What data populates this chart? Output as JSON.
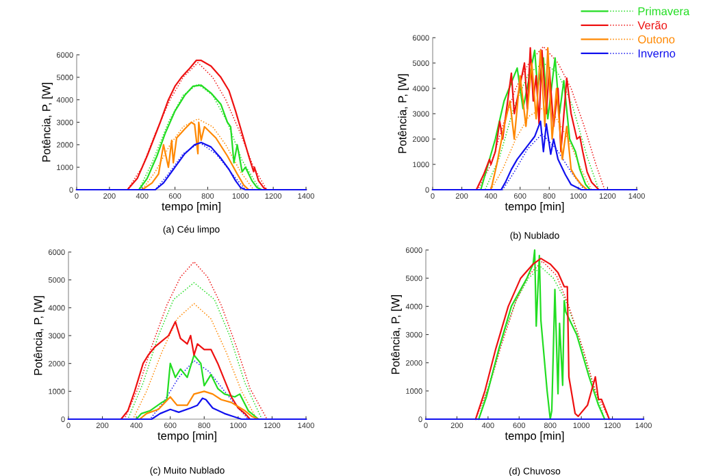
{
  "chart_data": [
    {
      "type": "line",
      "title": "(a) Céu limpo",
      "xlabel": "tempo [min]",
      "ylabel": "Potência, P, [W]",
      "xlim": [
        0,
        1400
      ],
      "xticks": [
        0,
        200,
        400,
        600,
        800,
        1000,
        1200,
        1400
      ],
      "ylim": [
        0,
        6000
      ],
      "yticks": [
        0,
        1000,
        2000,
        3000,
        4000,
        5000,
        6000
      ],
      "grid": false,
      "legend": false,
      "series": [
        {
          "color": "#22dd22",
          "line_style": "dotted",
          "x": [
            0,
            380,
            460,
            560,
            650,
            740,
            830,
            920,
            1010,
            1120,
            1400
          ],
          "values": [
            0,
            0,
            1200,
            3000,
            4200,
            4700,
            4200,
            3000,
            1300,
            0,
            0
          ]
        },
        {
          "color": "#ee1111",
          "line_style": "dotted",
          "x": [
            0,
            310,
            400,
            480,
            570,
            650,
            740,
            830,
            910,
            1000,
            1080,
            1160,
            1400
          ],
          "values": [
            0,
            0,
            1000,
            2500,
            4000,
            5000,
            5650,
            5000,
            4000,
            2500,
            1000,
            0,
            0
          ]
        },
        {
          "color": "#ff8800",
          "line_style": "dotted",
          "x": [
            0,
            400,
            480,
            570,
            650,
            740,
            830,
            910,
            1000,
            1080,
            1400
          ],
          "values": [
            0,
            0,
            800,
            2000,
            2800,
            3150,
            2800,
            2000,
            800,
            0,
            0
          ]
        },
        {
          "color": "#1111ee",
          "line_style": "dotted",
          "x": [
            0,
            480,
            560,
            650,
            750,
            850,
            950,
            1030,
            1400
          ],
          "values": [
            0,
            0,
            700,
            1600,
            2100,
            1600,
            700,
            0,
            0
          ]
        },
        {
          "color": "#22dd22",
          "line_style": "solid",
          "x": [
            0,
            380,
            430,
            490,
            540,
            600,
            660,
            710,
            760,
            820,
            880,
            920,
            940,
            960,
            980,
            1010,
            1030,
            1070,
            1100,
            1130,
            1400
          ],
          "values": [
            0,
            0,
            500,
            1500,
            2500,
            3500,
            4200,
            4600,
            4650,
            4300,
            3800,
            3000,
            2800,
            1200,
            2000,
            800,
            1000,
            400,
            100,
            0,
            0
          ]
        },
        {
          "color": "#ee1111",
          "line_style": "solid",
          "x": [
            0,
            310,
            370,
            430,
            510,
            560,
            600,
            640,
            690,
            730,
            760,
            820,
            880,
            930,
            970,
            1010,
            1050,
            1080,
            1085,
            1110,
            1140,
            1160,
            1400
          ],
          "values": [
            0,
            0,
            500,
            1500,
            3000,
            4000,
            4600,
            5000,
            5400,
            5750,
            5750,
            5500,
            5000,
            4400,
            3500,
            2500,
            1500,
            800,
            1000,
            400,
            100,
            0,
            0
          ]
        },
        {
          "color": "#ff8800",
          "line_style": "solid",
          "x": [
            0,
            400,
            460,
            500,
            530,
            560,
            580,
            590,
            610,
            660,
            700,
            720,
            740,
            745,
            760,
            780,
            850,
            920,
            980,
            1020,
            1050,
            1400
          ],
          "values": [
            0,
            0,
            300,
            700,
            2000,
            1000,
            2200,
            1200,
            2300,
            2700,
            3000,
            2900,
            1600,
            3000,
            2200,
            2800,
            2300,
            1500,
            700,
            200,
            0,
            0
          ]
        },
        {
          "color": "#1111ee",
          "line_style": "solid",
          "x": [
            0,
            480,
            530,
            600,
            660,
            720,
            760,
            820,
            880,
            930,
            970,
            1000,
            1030,
            1400
          ],
          "values": [
            0,
            0,
            300,
            1000,
            1600,
            2000,
            2100,
            1900,
            1400,
            900,
            400,
            100,
            0,
            0
          ]
        }
      ]
    },
    {
      "type": "line",
      "title": "(b) Nublado",
      "xlabel": "tempo [min]",
      "ylabel": "Potência, P, [W]",
      "xlim": [
        0,
        1400
      ],
      "xticks": [
        0,
        200,
        400,
        600,
        800,
        1000,
        1200,
        1400
      ],
      "ylim": [
        0,
        6000
      ],
      "yticks": [
        0,
        1000,
        2000,
        3000,
        4000,
        5000,
        6000
      ],
      "grid": false,
      "legend": "right",
      "series": [
        {
          "name": "Primavera",
          "color": "#22dd22",
          "line_style": "solid",
          "x": [
            0,
            330,
            380,
            430,
            490,
            580,
            620,
            700,
            720,
            760,
            790,
            840,
            870,
            900,
            940,
            980,
            1010,
            1050,
            1080,
            1400
          ],
          "values": [
            0,
            0,
            1000,
            2000,
            3500,
            4800,
            3200,
            5500,
            4000,
            5200,
            2800,
            5200,
            3000,
            4300,
            2000,
            1500,
            800,
            200,
            0,
            0
          ]
        },
        {
          "name": "Verão",
          "color": "#ee1111",
          "line_style": "solid",
          "x": [
            0,
            300,
            350,
            390,
            400,
            430,
            460,
            480,
            540,
            560,
            630,
            650,
            670,
            690,
            710,
            730,
            750,
            780,
            800,
            830,
            860,
            880,
            920,
            950,
            990,
            1010,
            1030,
            1060,
            1090,
            1140,
            1400
          ],
          "values": [
            0,
            0,
            600,
            1200,
            1000,
            1500,
            2700,
            2000,
            4600,
            3000,
            5000,
            3200,
            5600,
            3500,
            4500,
            2600,
            5500,
            3000,
            4800,
            2500,
            4000,
            1500,
            4400,
            3000,
            2000,
            2100,
            1500,
            700,
            300,
            0,
            0
          ]
        },
        {
          "name": "Outono",
          "color": "#ff8800",
          "line_style": "solid",
          "x": [
            0,
            400,
            440,
            490,
            530,
            560,
            600,
            640,
            680,
            710,
            740,
            770,
            790,
            820,
            850,
            890,
            920,
            950,
            980,
            1020,
            1060,
            1400
          ],
          "values": [
            0,
            0,
            1000,
            2500,
            3500,
            2000,
            4500,
            2500,
            5000,
            2800,
            5500,
            2500,
            5600,
            2000,
            4000,
            1200,
            2500,
            800,
            500,
            200,
            0,
            0
          ]
        },
        {
          "name": "Inverno",
          "color": "#1111ee",
          "line_style": "solid",
          "x": [
            0,
            470,
            500,
            540,
            580,
            620,
            660,
            700,
            740,
            760,
            780,
            810,
            830,
            860,
            910,
            950,
            1020,
            1400
          ],
          "values": [
            0,
            0,
            300,
            800,
            1200,
            1500,
            1800,
            2100,
            2700,
            1500,
            2600,
            1400,
            2000,
            1200,
            600,
            200,
            0,
            0
          ]
        },
        {
          "color": "#22dd22",
          "line_style": "dotted",
          "x": [
            0,
            360,
            460,
            560,
            660,
            760,
            860,
            960,
            1060,
            1140,
            1400
          ],
          "values": [
            0,
            0,
            1300,
            3300,
            4600,
            5000,
            4600,
            3300,
            1300,
            0,
            0
          ]
        },
        {
          "color": "#ee1111",
          "line_style": "dotted",
          "x": [
            0,
            310,
            400,
            480,
            570,
            660,
            760,
            860,
            950,
            1040,
            1120,
            1180,
            1400
          ],
          "values": [
            0,
            0,
            1000,
            2500,
            4000,
            5000,
            5650,
            5000,
            4000,
            2500,
            1000,
            0,
            0
          ]
        },
        {
          "color": "#ff8800",
          "line_style": "dotted",
          "x": [
            0,
            400,
            480,
            570,
            660,
            750,
            840,
            930,
            1020,
            1090,
            1400
          ],
          "values": [
            0,
            0,
            800,
            2000,
            2900,
            3200,
            2900,
            2000,
            800,
            0,
            0
          ]
        },
        {
          "color": "#1111ee",
          "line_style": "dotted",
          "x": [
            0,
            480,
            560,
            650,
            750,
            850,
            950,
            1040,
            1400
          ],
          "values": [
            0,
            0,
            700,
            1600,
            2200,
            1600,
            700,
            0,
            0
          ]
        }
      ]
    },
    {
      "type": "line",
      "title": "(c) Muito Nublado",
      "xlabel": "tempo [min]",
      "ylabel": "Potência, P, [W]",
      "xlim": [
        0,
        1400
      ],
      "xticks": [
        0,
        200,
        400,
        600,
        800,
        1000,
        1200,
        1400
      ],
      "ylim": [
        0,
        6000
      ],
      "yticks": [
        0,
        1000,
        2000,
        3000,
        4000,
        5000,
        6000
      ],
      "grid": false,
      "legend": false,
      "series": [
        {
          "color": "#22dd22",
          "line_style": "dotted",
          "x": [
            0,
            350,
            440,
            530,
            620,
            740,
            860,
            950,
            1040,
            1140,
            1400
          ],
          "values": [
            0,
            0,
            1300,
            3000,
            4300,
            4900,
            4300,
            3000,
            1300,
            0,
            0
          ]
        },
        {
          "color": "#ee1111",
          "line_style": "dotted",
          "x": [
            0,
            330,
            410,
            490,
            580,
            660,
            740,
            820,
            900,
            990,
            1070,
            1170,
            1400
          ],
          "values": [
            0,
            0,
            1100,
            2600,
            4100,
            5100,
            5650,
            5100,
            4100,
            2600,
            1100,
            0,
            0
          ]
        },
        {
          "color": "#ff8800",
          "line_style": "dotted",
          "x": [
            0,
            380,
            460,
            550,
            640,
            740,
            840,
            930,
            1020,
            1110,
            1400
          ],
          "values": [
            0,
            0,
            1000,
            2400,
            3600,
            4150,
            3600,
            2400,
            1000,
            0,
            0
          ]
        },
        {
          "color": "#1111ee",
          "line_style": "dotted",
          "x": [
            0,
            480,
            560,
            650,
            740,
            830,
            920,
            1000,
            1060,
            1400
          ],
          "values": [
            0,
            0,
            600,
            1500,
            2100,
            1700,
            1000,
            400,
            0,
            0
          ]
        },
        {
          "color": "#22dd22",
          "line_style": "solid",
          "x": [
            0,
            400,
            430,
            480,
            550,
            580,
            600,
            630,
            660,
            700,
            740,
            780,
            800,
            840,
            880,
            920,
            980,
            1010,
            1060,
            1120,
            1400
          ],
          "values": [
            0,
            0,
            200,
            300,
            600,
            700,
            2000,
            1500,
            1800,
            1500,
            2300,
            2000,
            1200,
            1600,
            1100,
            900,
            800,
            900,
            300,
            0,
            0
          ]
        },
        {
          "color": "#ee1111",
          "line_style": "solid",
          "x": [
            0,
            310,
            350,
            390,
            440,
            470,
            510,
            550,
            590,
            630,
            660,
            700,
            720,
            740,
            760,
            800,
            840,
            880,
            920,
            960,
            1000,
            1040,
            1070,
            1400
          ],
          "values": [
            0,
            0,
            300,
            1000,
            2000,
            2300,
            2600,
            2800,
            3000,
            3500,
            2900,
            2700,
            3000,
            2300,
            2700,
            2500,
            2500,
            2000,
            1400,
            800,
            400,
            200,
            0,
            0
          ]
        },
        {
          "color": "#ff8800",
          "line_style": "solid",
          "x": [
            0,
            420,
            460,
            530,
            600,
            640,
            700,
            740,
            800,
            850,
            900,
            960,
            1040,
            1080,
            1120,
            1400
          ],
          "values": [
            0,
            0,
            200,
            350,
            800,
            500,
            500,
            900,
            1000,
            900,
            700,
            600,
            300,
            100,
            0,
            0
          ]
        },
        {
          "color": "#1111ee",
          "line_style": "solid",
          "x": [
            0,
            490,
            540,
            600,
            650,
            720,
            760,
            790,
            810,
            850,
            920,
            970,
            1020,
            1400
          ],
          "values": [
            0,
            0,
            200,
            350,
            250,
            400,
            500,
            750,
            700,
            400,
            200,
            100,
            0,
            0
          ]
        }
      ]
    },
    {
      "type": "line",
      "title": "(d) Chuvoso",
      "xlabel": "tempo [min]",
      "ylabel": "Potência, P, [W]",
      "xlim": [
        0,
        1400
      ],
      "xticks": [
        0,
        200,
        400,
        600,
        800,
        1000,
        1200,
        1400
      ],
      "ylim": [
        0,
        6000
      ],
      "yticks": [
        0,
        1000,
        2000,
        3000,
        4000,
        5000,
        6000
      ],
      "grid": false,
      "legend": false,
      "series": [
        {
          "color": "#22dd22",
          "line_style": "dotted",
          "x": [
            340,
            420,
            500,
            580,
            660,
            740,
            820,
            900,
            980,
            1060,
            1150
          ],
          "values": [
            0,
            1500,
            3000,
            4200,
            5000,
            5400,
            5000,
            4200,
            3000,
            1500,
            0
          ]
        },
        {
          "color": "#ee1111",
          "line_style": "dotted",
          "x": [
            320,
            410,
            490,
            580,
            660,
            750,
            840,
            920,
            1010,
            1090,
            1180
          ],
          "values": [
            0,
            1200,
            2700,
            4200,
            5100,
            5600,
            5100,
            4000,
            2500,
            1000,
            0
          ]
        },
        {
          "color": "#22dd22",
          "line_style": "solid",
          "x": [
            340,
            390,
            470,
            550,
            650,
            690,
            700,
            710,
            730,
            740,
            780,
            800,
            810,
            830,
            850,
            860,
            880,
            890,
            900,
            970,
            1050,
            1110,
            1150
          ],
          "values": [
            0,
            800,
            2500,
            4000,
            5000,
            5500,
            6000,
            3300,
            5800,
            3500,
            1000,
            0,
            300,
            4600,
            900,
            3400,
            1200,
            4200,
            3800,
            3000,
            1500,
            500,
            0
          ]
        },
        {
          "color": "#ee1111",
          "line_style": "solid",
          "x": [
            320,
            380,
            450,
            530,
            610,
            690,
            740,
            800,
            850,
            890,
            910,
            920,
            960,
            980,
            1040,
            1090,
            1110,
            1130,
            1180
          ],
          "values": [
            0,
            1000,
            2500,
            4000,
            5000,
            5500,
            5700,
            5500,
            5200,
            4700,
            4700,
            1500,
            200,
            100,
            500,
            1500,
            700,
            700,
            0
          ]
        },
        {
          "color": "#1111ee",
          "line_style": "solid",
          "x": [
            0,
            1400
          ],
          "values": [
            0,
            0
          ]
        }
      ]
    }
  ]
}
